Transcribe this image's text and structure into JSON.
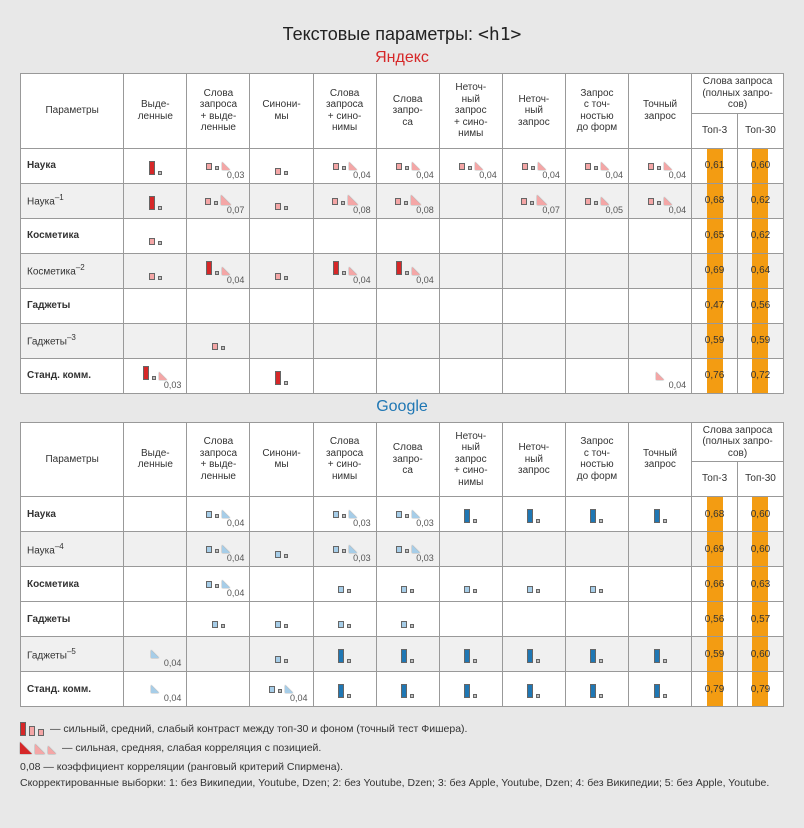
{
  "title_prefix": "Текстовые параметры: ",
  "title_code": "<h1>",
  "colors": {
    "yandex": "#d62728",
    "google": "#1f77b4",
    "yandex_light": "#f4a6a6",
    "google_light": "#a6cde8",
    "orange": "#f39c12",
    "grey_border": "#666666",
    "grey_fill": "#bfbfbf"
  },
  "columns": [
    "Параметры",
    "Выде-\nленные",
    "Слова\nзапроса\n+ выде-\nленные",
    "Синони-\nмы",
    "Слова\nзапроса\n+ сино-\nнимы",
    "Слова\nзапро-\nса",
    "Неточ-\nный\nзапрос\n+ сино-\nнимы",
    "Неточ-\nный\nзапрос",
    "Запрос\nс точ-\nностью\nдо форм",
    "Точный\nзапрос"
  ],
  "top_header": "Слова запроса\n(полных запро-\nсов)",
  "top_sub": [
    "Топ-3",
    "Топ-30"
  ],
  "engines": [
    {
      "name": "Яндекс",
      "class": "engine-yandex",
      "color": "#d62728",
      "light": "#f4a6a6",
      "rows": [
        {
          "label": "Наука",
          "bold": true,
          "sup": "",
          "alt": false,
          "cells": [
            {
              "bar": 3,
              "tri": 0,
              "val": ""
            },
            {
              "bar": 1,
              "tri": 1,
              "val": "0,03"
            },
            {
              "bar": 1,
              "tri": 0,
              "val": ""
            },
            {
              "bar": 1,
              "tri": 1,
              "val": "0,04"
            },
            {
              "bar": 1,
              "tri": 1,
              "val": "0,04"
            },
            {
              "bar": 1,
              "tri": 1,
              "val": "0,04"
            },
            {
              "bar": 1,
              "tri": 1,
              "val": "0,04"
            },
            {
              "bar": 1,
              "tri": 1,
              "val": "0,04"
            },
            {
              "bar": 1,
              "tri": 1,
              "val": "0,04"
            }
          ],
          "top3": "0,61",
          "top30": "0,60"
        },
        {
          "label": "Наука",
          "bold": false,
          "sup": "–1",
          "alt": true,
          "cells": [
            {
              "bar": 3,
              "tri": 0,
              "val": ""
            },
            {
              "bar": 1,
              "tri": 2,
              "val": "0,07"
            },
            {
              "bar": 1,
              "tri": 0,
              "val": ""
            },
            {
              "bar": 1,
              "tri": 2,
              "val": "0,08"
            },
            {
              "bar": 1,
              "tri": 2,
              "val": "0,08"
            },
            null,
            {
              "bar": 1,
              "tri": 2,
              "val": "0,07"
            },
            {
              "bar": 1,
              "tri": 1,
              "val": "0,05"
            },
            {
              "bar": 1,
              "tri": 1,
              "val": "0,04"
            }
          ],
          "top3": "0,68",
          "top30": "0,62"
        },
        {
          "label": "Косметика",
          "bold": true,
          "sup": "",
          "alt": false,
          "cells": [
            {
              "bar": 1,
              "tri": 0,
              "val": ""
            },
            null,
            null,
            null,
            null,
            null,
            null,
            null,
            null
          ],
          "top3": "0,65",
          "top30": "0,62"
        },
        {
          "label": "Косметика",
          "bold": false,
          "sup": "–2",
          "alt": true,
          "cells": [
            {
              "bar": 1,
              "tri": 0,
              "val": ""
            },
            {
              "bar": 3,
              "tri": 1,
              "val": "0,04"
            },
            {
              "bar": 1,
              "tri": 0,
              "val": ""
            },
            {
              "bar": 3,
              "tri": 1,
              "val": "0,04"
            },
            {
              "bar": 3,
              "tri": 1,
              "val": "0,04"
            },
            null,
            null,
            null,
            null
          ],
          "top3": "0,69",
          "top30": "0,64"
        },
        {
          "label": "Гаджеты",
          "bold": true,
          "sup": "",
          "alt": false,
          "cells": [
            null,
            null,
            null,
            null,
            null,
            null,
            null,
            null,
            null
          ],
          "top3": "0,47",
          "top30": "0,56"
        },
        {
          "label": "Гаджеты",
          "bold": false,
          "sup": "–3",
          "alt": true,
          "cells": [
            null,
            {
              "bar": 1,
              "tri": 0,
              "val": ""
            },
            null,
            null,
            null,
            null,
            null,
            null,
            null
          ],
          "top3": "0,59",
          "top30": "0,59"
        },
        {
          "label": "Станд. комм.",
          "bold": true,
          "sup": "",
          "alt": false,
          "cells": [
            {
              "bar": 3,
              "tri": 1,
              "val": "0,03"
            },
            null,
            {
              "bar": 3,
              "tri": 0,
              "val": ""
            },
            null,
            null,
            null,
            null,
            null,
            {
              "bar": 0,
              "tri": 1,
              "val": "0,04"
            }
          ],
          "top3": "0,76",
          "top30": "0,72"
        }
      ]
    },
    {
      "name": "Google",
      "class": "engine-google",
      "color": "#1f77b4",
      "light": "#a6cde8",
      "rows": [
        {
          "label": "Наука",
          "bold": true,
          "sup": "",
          "alt": false,
          "cells": [
            null,
            {
              "bar": 1,
              "tri": 1,
              "val": "0,04"
            },
            null,
            {
              "bar": 1,
              "tri": 1,
              "val": "0,03"
            },
            {
              "bar": 1,
              "tri": 1,
              "val": "0,03"
            },
            {
              "bar": 3,
              "tri": 0,
              "val": ""
            },
            {
              "bar": 3,
              "tri": 0,
              "val": ""
            },
            {
              "bar": 3,
              "tri": 0,
              "val": ""
            },
            {
              "bar": 3,
              "tri": 0,
              "val": ""
            }
          ],
          "top3": "0,68",
          "top30": "0,60"
        },
        {
          "label": "Наука",
          "bold": false,
          "sup": "–4",
          "alt": true,
          "cells": [
            null,
            {
              "bar": 1,
              "tri": 1,
              "val": "0,04"
            },
            {
              "bar": 1,
              "tri": 0,
              "val": ""
            },
            {
              "bar": 1,
              "tri": 1,
              "val": "0,03"
            },
            {
              "bar": 1,
              "tri": 1,
              "val": "0,03"
            },
            null,
            null,
            null,
            null
          ],
          "top3": "0,69",
          "top30": "0,60"
        },
        {
          "label": "Косметика",
          "bold": true,
          "sup": "",
          "alt": false,
          "cells": [
            null,
            {
              "bar": 1,
              "tri": 1,
              "val": "0,04"
            },
            null,
            {
              "bar": 1,
              "tri": 0,
              "val": ""
            },
            {
              "bar": 1,
              "tri": 0,
              "val": ""
            },
            {
              "bar": 1,
              "tri": 0,
              "val": ""
            },
            {
              "bar": 1,
              "tri": 0,
              "val": ""
            },
            {
              "bar": 1,
              "tri": 0,
              "val": ""
            },
            null
          ],
          "top3": "0,66",
          "top30": "0,63"
        },
        {
          "label": "Гаджеты",
          "bold": true,
          "sup": "",
          "alt": false,
          "cells": [
            null,
            {
              "bar": 1,
              "tri": 0,
              "val": ""
            },
            {
              "bar": 1,
              "tri": 0,
              "val": ""
            },
            {
              "bar": 1,
              "tri": 0,
              "val": ""
            },
            {
              "bar": 1,
              "tri": 0,
              "val": ""
            },
            null,
            null,
            null,
            null
          ],
          "top3": "0,56",
          "top30": "0,57"
        },
        {
          "label": "Гаджеты",
          "bold": false,
          "sup": "–5",
          "alt": true,
          "cells": [
            {
              "bar": 0,
              "tri": 1,
              "val": "0,04"
            },
            null,
            {
              "bar": 1,
              "tri": 0,
              "val": ""
            },
            {
              "bar": 3,
              "tri": 0,
              "val": ""
            },
            {
              "bar": 3,
              "tri": 0,
              "val": ""
            },
            {
              "bar": 3,
              "tri": 0,
              "val": ""
            },
            {
              "bar": 3,
              "tri": 0,
              "val": ""
            },
            {
              "bar": 3,
              "tri": 0,
              "val": ""
            },
            {
              "bar": 3,
              "tri": 0,
              "val": ""
            }
          ],
          "top3": "0,59",
          "top30": "0,60"
        },
        {
          "label": "Станд. комм.",
          "bold": true,
          "sup": "",
          "alt": false,
          "cells": [
            {
              "bar": 0,
              "tri": 1,
              "val": "0,04"
            },
            null,
            {
              "bar": 1,
              "tri": 1,
              "val": "0,04"
            },
            {
              "bar": 3,
              "tri": 0,
              "val": ""
            },
            {
              "bar": 3,
              "tri": 0,
              "val": ""
            },
            {
              "bar": 3,
              "tri": 0,
              "val": ""
            },
            {
              "bar": 3,
              "tri": 0,
              "val": ""
            },
            {
              "bar": 3,
              "tri": 0,
              "val": ""
            },
            {
              "bar": 3,
              "tri": 0,
              "val": ""
            }
          ],
          "top3": "0,79",
          "top30": "0,79"
        }
      ]
    }
  ],
  "legend": {
    "line1": "— сильный, средний, слабый контраст между топ-30 и фоном (точный тест Фишера).",
    "line2": "— сильная, средняя, слабая корреляция с позицией.",
    "line3": "0,08 — коэффициент корреляции (ранговый критерий Спирмена).",
    "line4": "Скорректированные выборки: 1: без Википедии, Youtube, Dzen; 2: без Youtube, Dzen; 3: без Apple, Youtube, Dzen; 4: без Википедии; 5: без Apple, Youtube."
  }
}
